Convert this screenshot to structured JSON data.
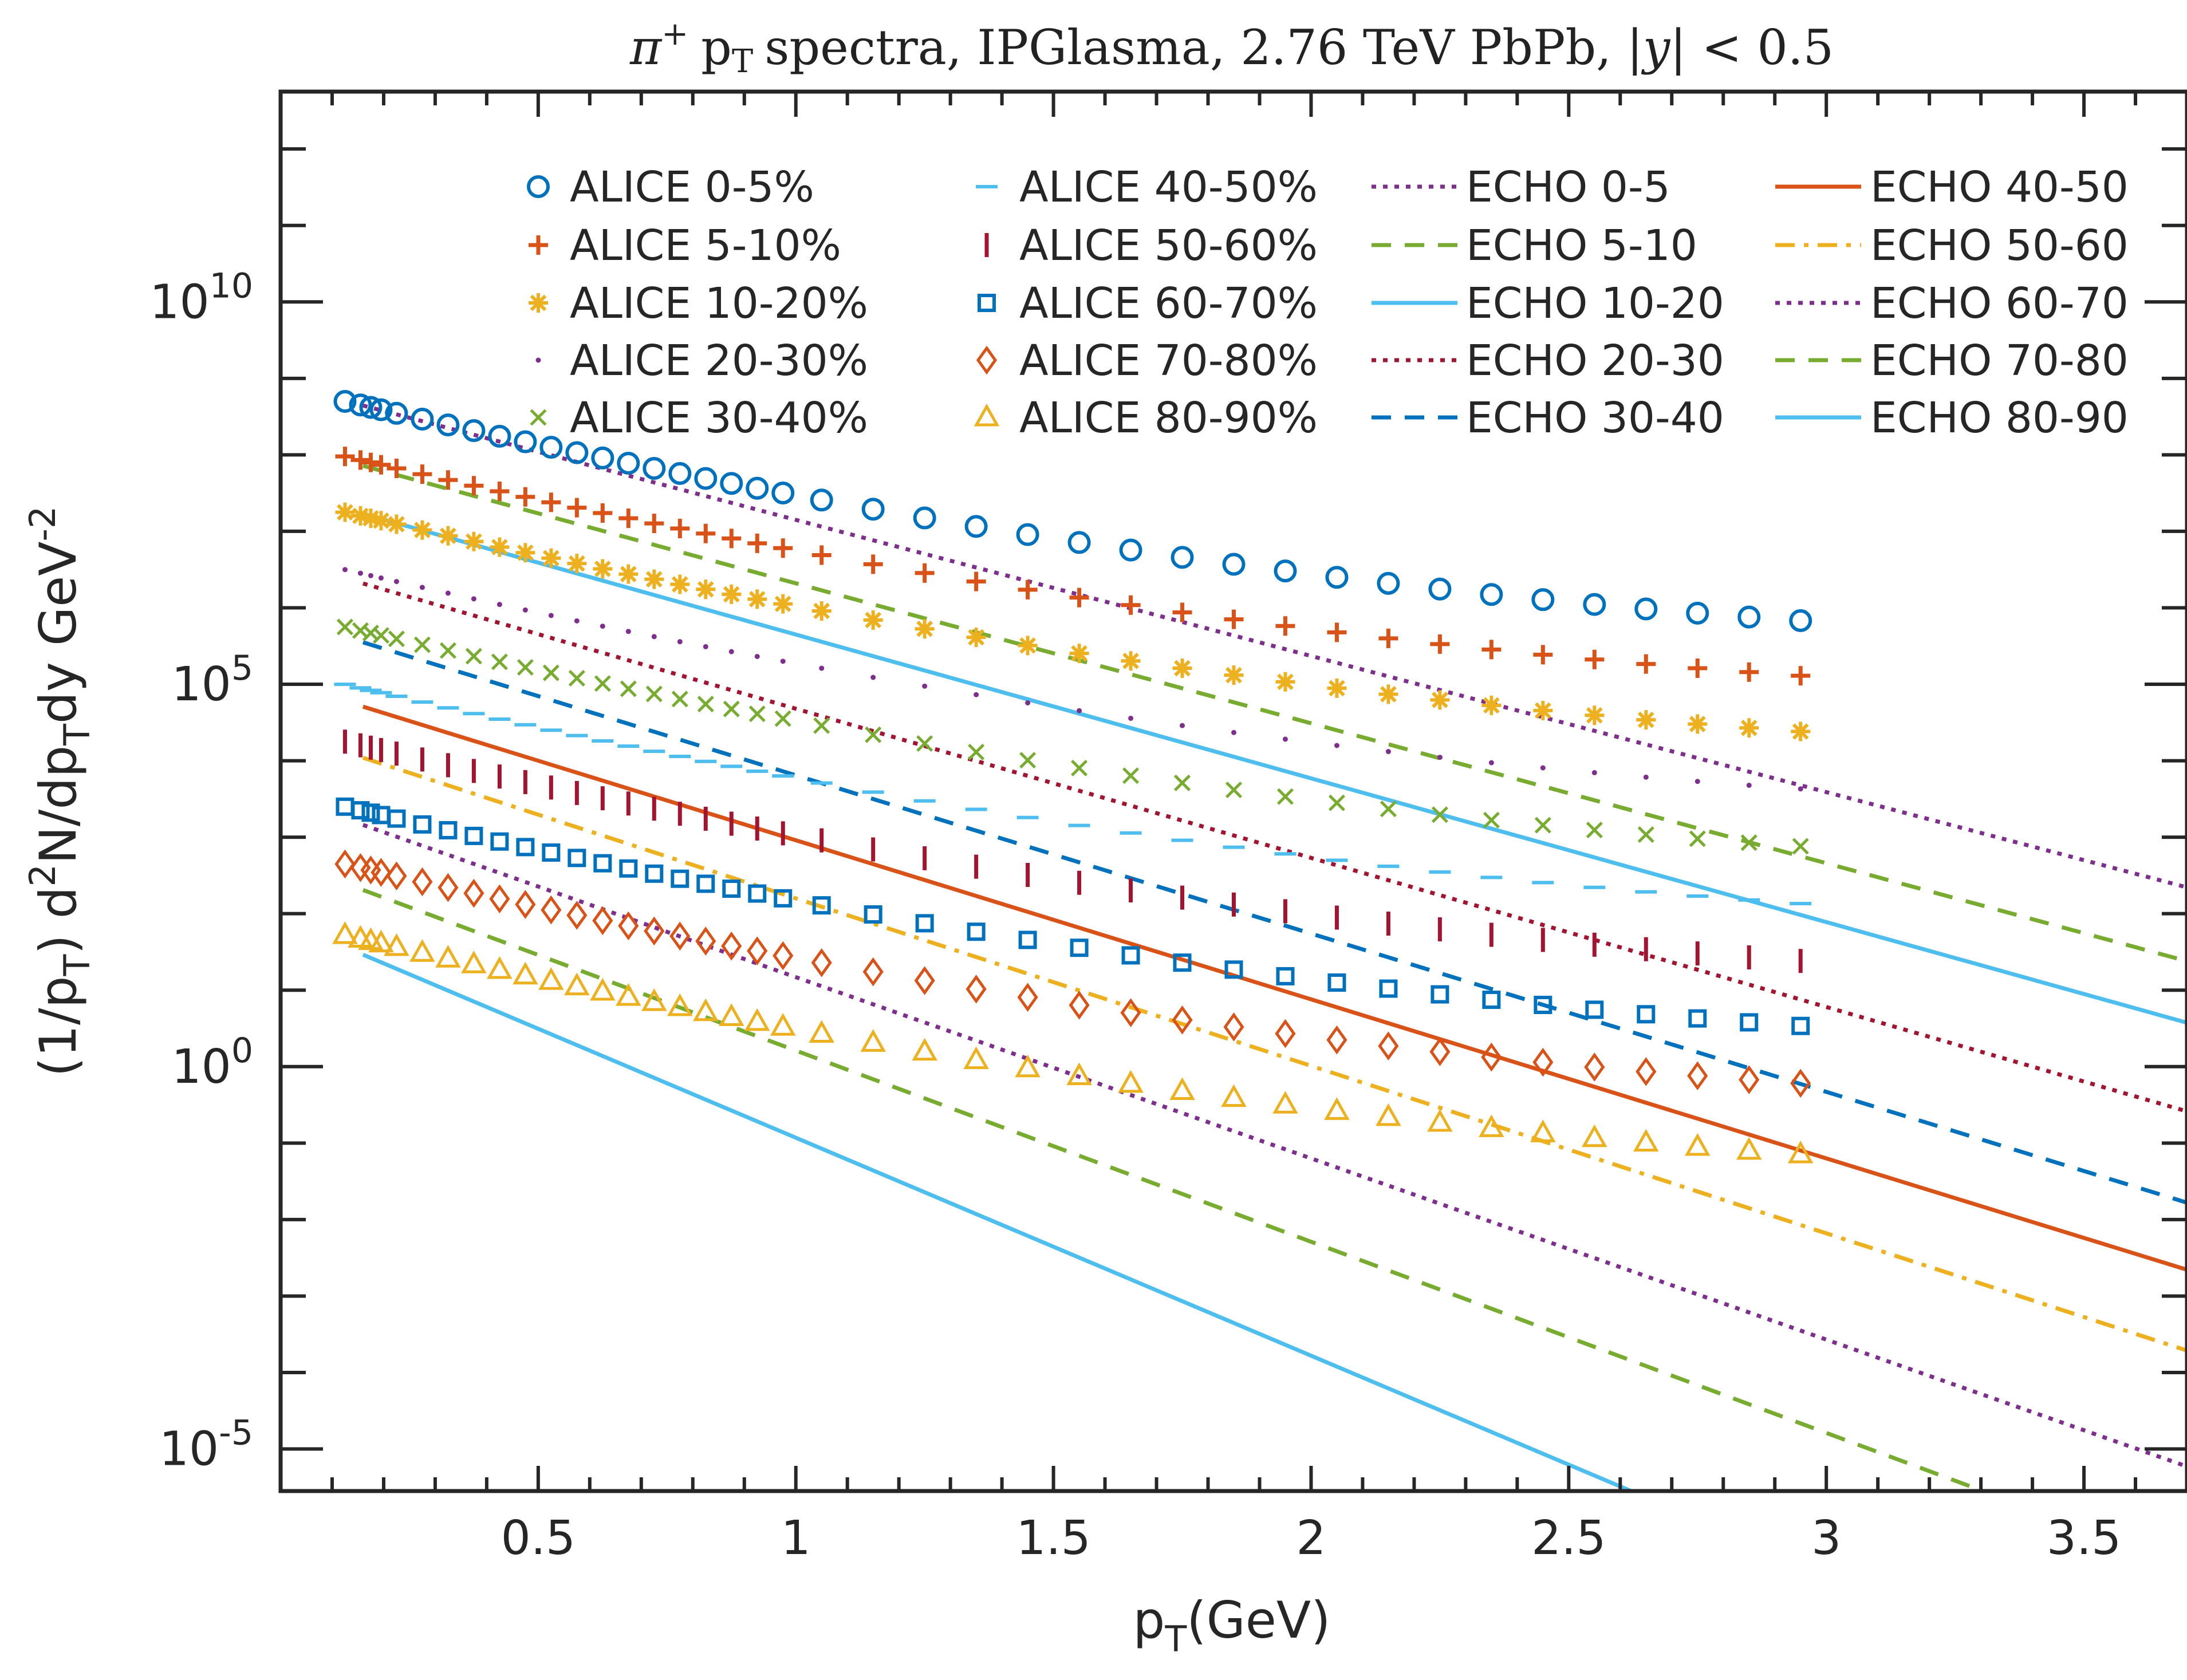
{
  "chart_data": {
    "type": "line",
    "title_parts": {
      "pi": "π",
      "plus": "+",
      "p": "p",
      "T": "T",
      "rest": "spectra, IPGlasma, 2.76 TeV PbPb, |",
      "y": "y",
      "tail": "| < 0.5"
    },
    "xlabel": {
      "main": "p",
      "sub": "T",
      "rest": "(GeV)"
    },
    "ylabel": {
      "a": "(1/p",
      "a_sub": "T",
      "b": ") d",
      "b_sup": "2",
      "c": "N/dp",
      "c_sub": "T",
      "d": "dy GeV",
      "d_sup": "-2"
    },
    "xlim": [
      0.0,
      3.7
    ],
    "ylim_log10": [
      -5.55,
      12.75
    ],
    "y_scale": "log",
    "x_ticks": [
      {
        "value": 0.5,
        "label": "0.5"
      },
      {
        "value": 1.0,
        "label": "1"
      },
      {
        "value": 1.5,
        "label": "1.5"
      },
      {
        "value": 2.0,
        "label": "2"
      },
      {
        "value": 2.5,
        "label": "2.5"
      },
      {
        "value": 3.0,
        "label": "3"
      },
      {
        "value": 3.5,
        "label": "3.5"
      }
    ],
    "y_ticks": [
      {
        "log10": 10,
        "base": "10",
        "exp": "10"
      },
      {
        "log10": 5,
        "base": "10",
        "exp": "5"
      },
      {
        "log10": 0,
        "base": "10",
        "exp": "0"
      },
      {
        "log10": -5,
        "base": "10",
        "exp": "-5"
      }
    ],
    "legend_position": "top, four columns",
    "alice_pt": [
      0.125,
      0.155,
      0.175,
      0.195,
      0.225,
      0.275,
      0.325,
      0.375,
      0.425,
      0.475,
      0.525,
      0.575,
      0.625,
      0.675,
      0.725,
      0.775,
      0.825,
      0.875,
      0.925,
      0.975,
      1.05,
      1.15,
      1.25,
      1.35,
      1.45,
      1.55,
      1.65,
      1.75,
      1.85,
      1.95,
      2.05,
      2.15,
      2.25,
      2.35,
      2.45,
      2.55,
      2.65,
      2.75,
      2.85,
      2.95
    ],
    "alice_series": [
      {
        "name": "ALICE 0-5%",
        "marker": "circle",
        "color": "#0072BD",
        "log10_at_0": 8.9,
        "slope": -1.63,
        "curv": 0.2
      },
      {
        "name": "ALICE 5-10%",
        "marker": "plus",
        "color": "#D95319",
        "log10_at_0": 8.18,
        "slope": -1.63,
        "curv": 0.2
      },
      {
        "name": "ALICE 10-20%",
        "marker": "asterisk",
        "color": "#EDB120",
        "log10_at_0": 7.45,
        "slope": -1.63,
        "curv": 0.2
      },
      {
        "name": "ALICE 20-30%",
        "marker": "dot",
        "color": "#7E2F8E",
        "log10_at_0": 6.7,
        "slope": -1.63,
        "curv": 0.2
      },
      {
        "name": "ALICE 30-40%",
        "marker": "x",
        "color": "#77AC30",
        "log10_at_0": 5.95,
        "slope": -1.63,
        "curv": 0.2
      },
      {
        "name": "ALICE 40-50%",
        "marker": "hline",
        "color": "#4DBEEE",
        "log10_at_0": 5.2,
        "slope": -1.63,
        "curv": 0.2
      },
      {
        "name": "ALICE 50-60%",
        "marker": "vline",
        "color": "#A2142F",
        "log10_at_0": 4.45,
        "slope": -1.63,
        "curv": 0.2
      },
      {
        "name": "ALICE 60-70%",
        "marker": "square",
        "color": "#0072BD",
        "log10_at_0": 3.6,
        "slope": -1.63,
        "curv": 0.2
      },
      {
        "name": "ALICE 70-80%",
        "marker": "diamond",
        "color": "#D95319",
        "log10_at_0": 2.85,
        "slope": -1.63,
        "curv": 0.2
      },
      {
        "name": "ALICE 80-90%",
        "marker": "triangle",
        "color": "#EDB120",
        "log10_at_0": 1.92,
        "slope": -1.63,
        "curv": 0.2
      }
    ],
    "echo_x_range": [
      0.16,
      3.7
    ],
    "echo_series": [
      {
        "name": "ECHO 0-5",
        "style": "dotted",
        "color": "#7E2F8E",
        "log10_at_0": 8.93,
        "slope": -1.78
      },
      {
        "name": "ECHO 5-10",
        "style": "dashed",
        "color": "#77AC30",
        "log10_at_0": 8.15,
        "slope": -1.83
      },
      {
        "name": "ECHO 10-20",
        "style": "solid",
        "color": "#4DBEEE",
        "log10_at_0": 7.53,
        "slope": -1.88
      },
      {
        "name": "ECHO 20-30",
        "style": "dotted",
        "color": "#A2142F",
        "log10_at_0": 6.63,
        "slope": -1.95
      },
      {
        "name": "ECHO 30-40",
        "style": "dashed",
        "color": "#0072BD",
        "log10_at_0": 5.88,
        "slope": -2.07
      },
      {
        "name": "ECHO 40-50",
        "style": "solid",
        "color": "#D95319",
        "log10_at_0": 5.04,
        "slope": -2.08
      },
      {
        "name": "ECHO 50-60",
        "style": "dashdot",
        "color": "#EDB120",
        "log10_at_0": 4.39,
        "slope": -2.19
      },
      {
        "name": "ECHO 60-70",
        "style": "dotted",
        "color": "#7E2F8E",
        "log10_at_0": 3.54,
        "slope": -2.37
      },
      {
        "name": "ECHO 70-80",
        "style": "dashed",
        "color": "#77AC30",
        "log10_at_0": 2.71,
        "slope": -2.5
      },
      {
        "name": "ECHO 80-90",
        "style": "solid",
        "color": "#4DBEEE",
        "log10_at_0": 1.92,
        "slope": -2.85
      }
    ],
    "grid": false
  }
}
